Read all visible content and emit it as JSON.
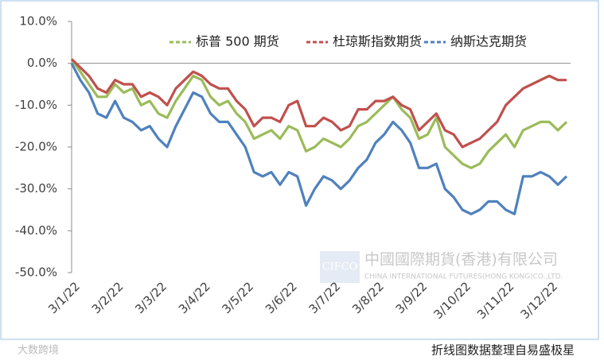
{
  "chart_data": {
    "type": "line",
    "categories": [
      "3/1/22",
      null,
      null,
      null,
      null,
      "3/2/22",
      null,
      null,
      null,
      null,
      "3/3/22",
      null,
      null,
      null,
      null,
      "3/4/22",
      null,
      null,
      null,
      null,
      "3/5/22",
      null,
      null,
      null,
      null,
      "3/6/22",
      null,
      null,
      null,
      null,
      "3/7/22",
      null,
      null,
      null,
      null,
      "3/8/22",
      null,
      null,
      null,
      null,
      "3/9/22",
      null,
      null,
      null,
      null,
      "3/10/22",
      null,
      null,
      null,
      null,
      "3/11/22",
      null,
      null,
      null,
      null,
      "3/12/22",
      null,
      null
    ],
    "series": [
      {
        "name": "标普 500 期货",
        "color": "#9bbb59",
        "values": [
          1,
          -2,
          -5,
          -8,
          -8,
          -5,
          -7,
          -6,
          -10,
          -9,
          -12,
          -13,
          -9,
          -6,
          -3,
          -4,
          -8,
          -10,
          -9,
          -12,
          -14,
          -18,
          -17,
          -16,
          -18,
          -15,
          -16,
          -21,
          -20,
          -18,
          -19,
          -20,
          -18,
          -15,
          -14,
          -12,
          -10,
          -8,
          -11,
          -13,
          -18,
          -17,
          -13,
          -20,
          -22,
          -24,
          -25,
          -24,
          -21,
          -19,
          -17,
          -20,
          -16,
          -15,
          -14,
          -14,
          -16,
          -14
        ]
      },
      {
        "name": "杜琼斯指数期货",
        "color": "#c0504d",
        "values": [
          1,
          -1,
          -3,
          -6,
          -7,
          -4,
          -5,
          -5,
          -8,
          -7,
          -8,
          -10,
          -6,
          -4,
          -2,
          -3,
          -5,
          -6,
          -6,
          -9,
          -11,
          -15,
          -13,
          -13,
          -14,
          -10,
          -9,
          -15,
          -15,
          -13,
          -14,
          -16,
          -15,
          -11,
          -11,
          -9,
          -9,
          -8,
          -10,
          -11,
          -16,
          -14,
          -12,
          -16,
          -17,
          -20,
          -19,
          -18,
          -16,
          -14,
          -10,
          -8,
          -6,
          -5,
          -4,
          -3,
          -4,
          -4
        ]
      },
      {
        "name": "纳斯达克期货",
        "color": "#4f81bd",
        "values": [
          0,
          -4,
          -7,
          -12,
          -13,
          -9,
          -13,
          -14,
          -16,
          -15,
          -18,
          -20,
          -15,
          -11,
          -7,
          -8,
          -12,
          -14,
          -14,
          -17,
          -20,
          -26,
          -27,
          -26,
          -29,
          -26,
          -27,
          -34,
          -30,
          -27,
          -28,
          -30,
          -28,
          -25,
          -23,
          -19,
          -17,
          -14,
          -16,
          -19,
          -25,
          -25,
          -24,
          -30,
          -32,
          -35,
          -36,
          -35,
          -33,
          -33,
          -35,
          -36,
          -27,
          -27,
          -26,
          -27,
          -29,
          -27
        ]
      }
    ],
    "ylim": [
      -50,
      10
    ],
    "yticks": [
      {
        "value": 10,
        "label": "10.0%"
      },
      {
        "value": 0,
        "label": "0.0%"
      },
      {
        "value": -10,
        "label": "-10.0%"
      },
      {
        "value": -20,
        "label": "-20.0%"
      },
      {
        "value": -30,
        "label": "-30.0%"
      },
      {
        "value": -40,
        "label": "-40.0%"
      },
      {
        "value": -50,
        "label": "-50.0%"
      }
    ],
    "grid": false,
    "zero_line": true,
    "legend": "top",
    "watermark": {
      "logo": "CIFCO",
      "name": "中國國際期貨(香港)有限公司",
      "name_en": "CHINA INTERNATIONAL FUTURES(HONG KONG)CO.,LTD.",
      "corner": "大数跨境"
    },
    "source": "折线图数据整理自易盛极星"
  }
}
